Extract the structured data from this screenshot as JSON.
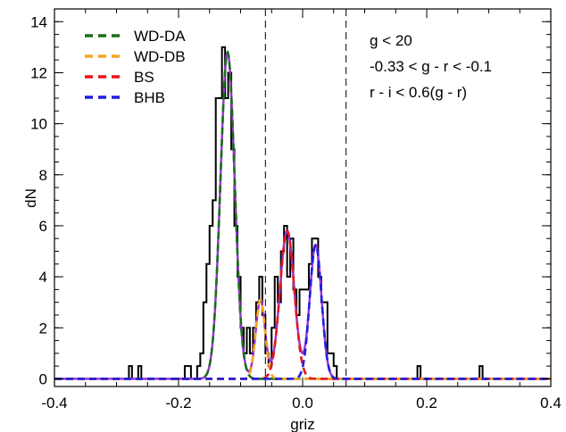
{
  "chart_data": {
    "type": "line",
    "title": "",
    "xlabel": "griz",
    "ylabel": "dN",
    "xlim": [
      -0.4,
      0.4
    ],
    "ylim": [
      -0.3,
      14.5
    ],
    "x_ticks": [
      -0.4,
      -0.2,
      0.0,
      0.2,
      0.4
    ],
    "x_tick_labels": [
      "-0.4",
      "-0.2",
      "0.0",
      "0.2",
      "0.4"
    ],
    "x_minor_step": 0.05,
    "y_ticks": [
      0,
      2,
      4,
      6,
      8,
      10,
      12,
      14
    ],
    "y_tick_labels": [
      "0",
      "2",
      "4",
      "6",
      "8",
      "10",
      "12",
      "14"
    ],
    "y_minor_step": 0.5,
    "grid": false,
    "legend_position": "top-left",
    "legend": [
      {
        "label": "WD-DA",
        "color": "#1a6e1a"
      },
      {
        "label": "WD-DB",
        "color": "#f5a623"
      },
      {
        "label": "BS",
        "color": "#e8131b"
      },
      {
        "label": "BHB",
        "color": "#1f1fe0"
      }
    ],
    "annotations": [
      "g < 20",
      "-0.33 < g - r < -0.1",
      "r - i < 0.6(g - r)"
    ],
    "vertical_lines": [
      -0.06,
      0.07
    ],
    "histogram": {
      "color": "#000000",
      "bin_width": 0.005,
      "bins": [
        [
          -0.28,
          0.5
        ],
        [
          -0.275,
          0
        ],
        [
          -0.265,
          0.5
        ],
        [
          -0.26,
          0
        ],
        [
          -0.19,
          0.5
        ],
        [
          -0.18,
          0
        ],
        [
          -0.17,
          0.5
        ],
        [
          -0.165,
          1
        ],
        [
          -0.16,
          3
        ],
        [
          -0.155,
          4.5
        ],
        [
          -0.15,
          6
        ],
        [
          -0.145,
          7
        ],
        [
          -0.14,
          11
        ],
        [
          -0.135,
          11
        ],
        [
          -0.13,
          13
        ],
        [
          -0.125,
          11
        ],
        [
          -0.12,
          12
        ],
        [
          -0.115,
          9
        ],
        [
          -0.11,
          6
        ],
        [
          -0.105,
          4
        ],
        [
          -0.1,
          2
        ],
        [
          -0.095,
          1
        ],
        [
          -0.09,
          2
        ],
        [
          -0.085,
          1
        ],
        [
          -0.08,
          2
        ],
        [
          -0.075,
          3
        ],
        [
          -0.07,
          4
        ],
        [
          -0.065,
          2.5
        ],
        [
          -0.06,
          1
        ],
        [
          -0.055,
          0.5
        ],
        [
          -0.05,
          2
        ],
        [
          -0.045,
          4
        ],
        [
          -0.04,
          3
        ],
        [
          -0.035,
          5
        ],
        [
          -0.03,
          6
        ],
        [
          -0.025,
          4
        ],
        [
          -0.02,
          5.5
        ],
        [
          -0.015,
          3.5
        ],
        [
          -0.01,
          2.5
        ],
        [
          -0.005,
          3.5
        ],
        [
          0.0,
          3.5
        ],
        [
          0.005,
          3.5
        ],
        [
          0.01,
          4.5
        ],
        [
          0.015,
          5.5
        ],
        [
          0.02,
          5.5
        ],
        [
          0.025,
          4
        ],
        [
          0.03,
          3
        ],
        [
          0.035,
          3
        ],
        [
          0.04,
          1
        ],
        [
          0.045,
          1
        ],
        [
          0.05,
          0.5
        ],
        [
          0.055,
          0
        ],
        [
          0.185,
          0.5
        ],
        [
          0.19,
          0
        ],
        [
          0.285,
          0.5
        ],
        [
          0.29,
          0
        ]
      ]
    },
    "series": [
      {
        "name": "WD-DA",
        "color": "#1a6e1a",
        "style": "dashed",
        "amplitude": 12.8,
        "mean": -0.121,
        "sigma": 0.0115
      },
      {
        "name": "WD-DB",
        "color": "#f5a623",
        "style": "dashed",
        "amplitude": 3.1,
        "mean": -0.068,
        "sigma": 0.0075
      },
      {
        "name": "BS",
        "color": "#e8131b",
        "style": "dashed",
        "amplitude": 5.8,
        "mean": -0.025,
        "sigma": 0.0115
      },
      {
        "name": "BHB",
        "color": "#1f1fe0",
        "style": "dashed",
        "amplitude": 5.25,
        "mean": 0.021,
        "sigma": 0.0095
      },
      {
        "name": "",
        "color": "#9b30d9",
        "style": "solid",
        "components": "sum"
      }
    ]
  }
}
